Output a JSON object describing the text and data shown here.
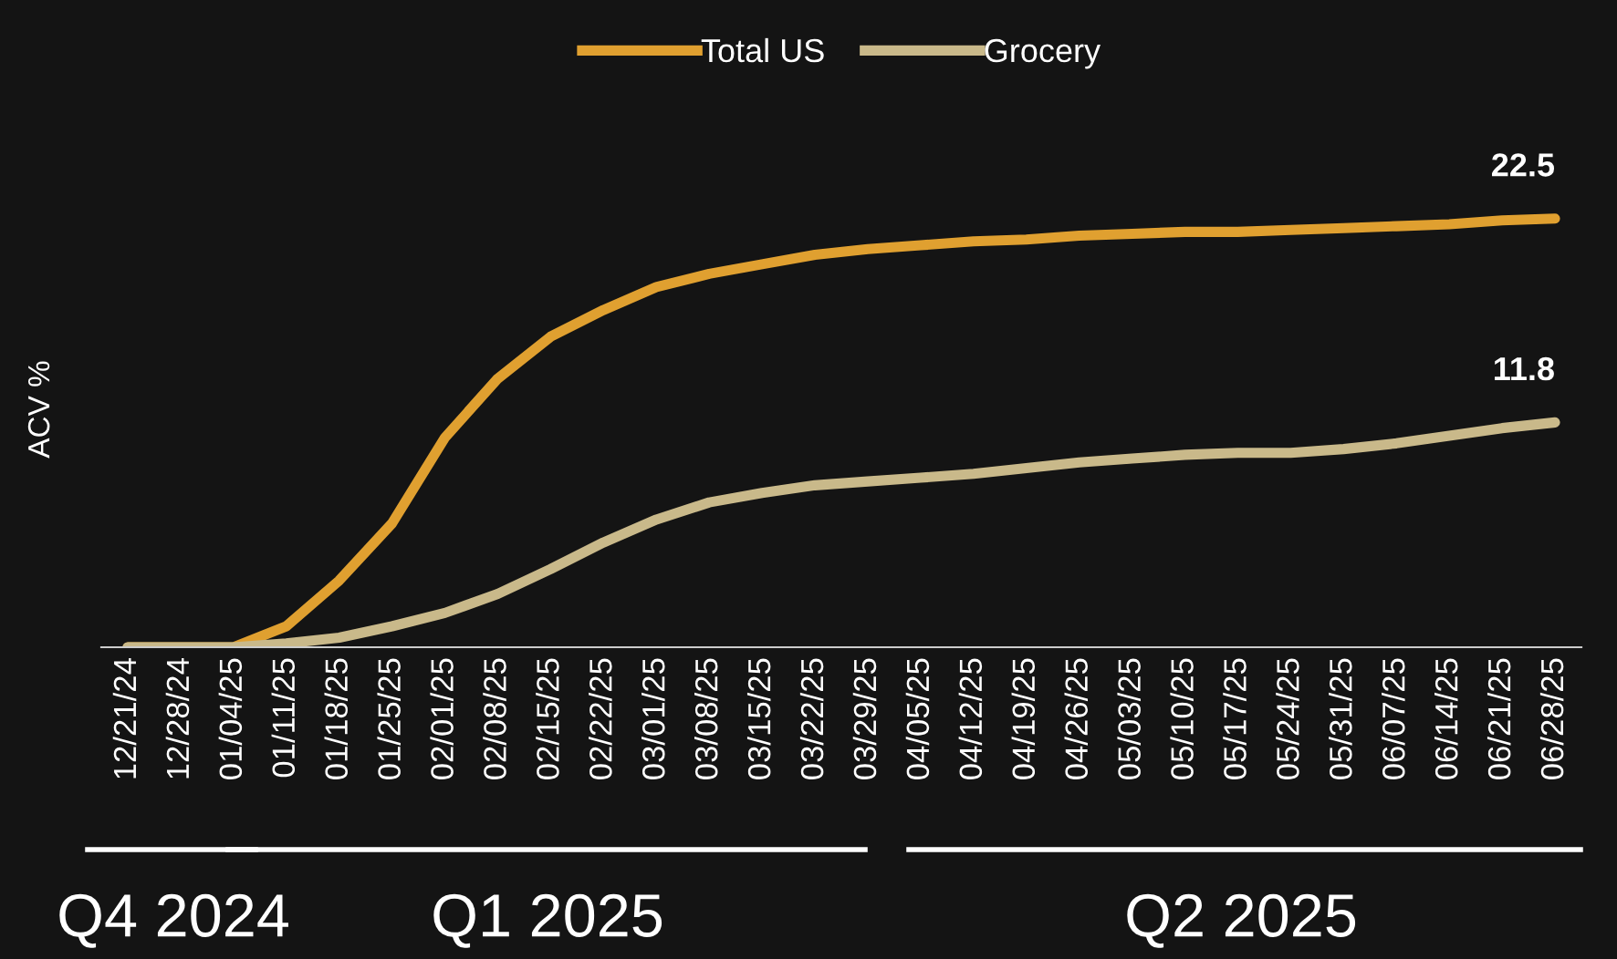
{
  "chart_data": {
    "type": "line",
    "ylabel": "ACV %",
    "legend": "top",
    "tick_labels": "x",
    "grid": false,
    "marker": "none",
    "line_style": "solid",
    "categories": [
      "12/21/24",
      "12/28/24",
      "01/04/25",
      "01/11/25",
      "01/18/25",
      "01/25/25",
      "02/01/25",
      "02/08/25",
      "02/15/25",
      "02/22/25",
      "03/01/25",
      "03/08/25",
      "03/15/25",
      "03/22/25",
      "03/29/25",
      "04/05/25",
      "04/12/25",
      "04/19/25",
      "04/26/25",
      "05/03/25",
      "05/10/25",
      "05/17/25",
      "05/24/25",
      "05/31/25",
      "06/07/25",
      "06/14/25",
      "06/21/25",
      "06/28/25"
    ],
    "series": [
      {
        "name": "Total US",
        "color": "#e0a030",
        "values": [
          0,
          0,
          0,
          1.1,
          3.5,
          6.5,
          11.0,
          14.1,
          16.3,
          17.7,
          18.9,
          19.6,
          20.1,
          20.6,
          20.9,
          21.1,
          21.3,
          21.4,
          21.6,
          21.7,
          21.8,
          21.8,
          21.9,
          22.0,
          22.1,
          22.2,
          22.4,
          22.5
        ],
        "value_labels": [
          null,
          null,
          null,
          null,
          null,
          null,
          null,
          null,
          null,
          null,
          null,
          null,
          null,
          null,
          null,
          null,
          null,
          null,
          null,
          null,
          null,
          null,
          null,
          null,
          null,
          null,
          null,
          "22.5"
        ]
      },
      {
        "name": "Grocery",
        "color": "#c9b98a",
        "values": [
          0,
          0,
          0,
          0.2,
          0.5,
          1.1,
          1.8,
          2.8,
          4.1,
          5.5,
          6.7,
          7.6,
          8.1,
          8.5,
          8.7,
          8.9,
          9.1,
          9.4,
          9.7,
          9.9,
          10.1,
          10.2,
          10.2,
          10.4,
          10.7,
          11.1,
          11.5,
          11.8
        ],
        "value_labels": [
          null,
          null,
          null,
          null,
          null,
          null,
          null,
          null,
          null,
          null,
          null,
          null,
          null,
          null,
          null,
          null,
          null,
          null,
          null,
          null,
          null,
          null,
          null,
          null,
          null,
          null,
          null,
          "11.8"
        ]
      }
    ],
    "annotations": [
      "Q4 2024",
      "Q1 2025",
      "Q2 2025"
    ]
  }
}
